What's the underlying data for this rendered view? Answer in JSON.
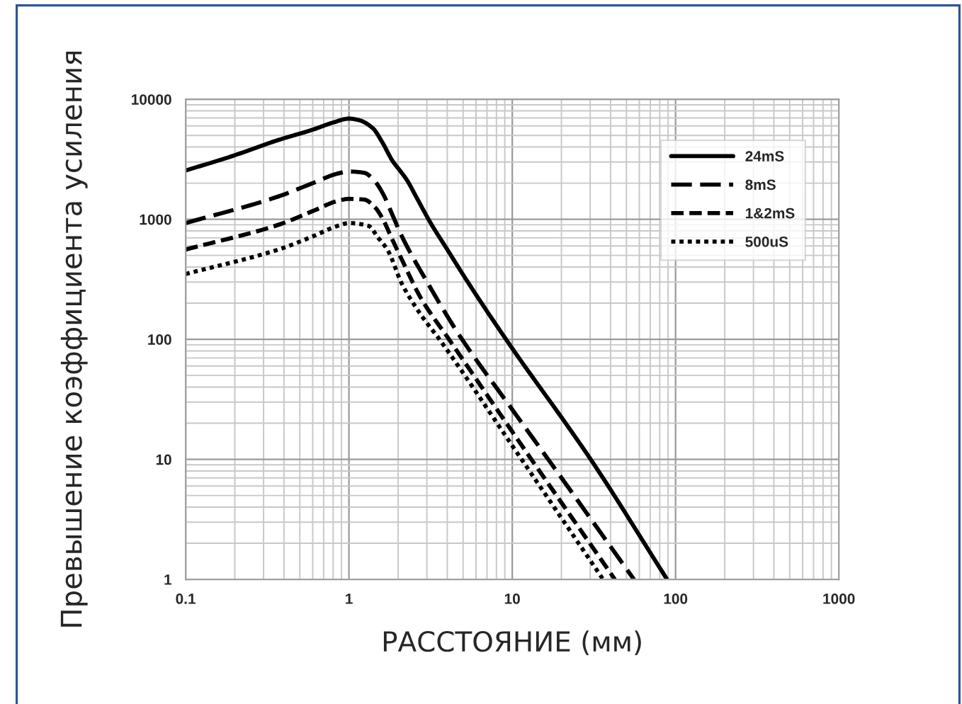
{
  "chart_data": {
    "type": "line",
    "xlabel": "РАССТОЯНИЕ (мм)",
    "ylabel": "Превышение коэффициента усиления",
    "log": "xy",
    "xlim": [
      0.1,
      1000
    ],
    "ylim": [
      1,
      10000
    ],
    "xticks": [
      0.1,
      1,
      10,
      100,
      1000
    ],
    "yticks": [
      1,
      10,
      100,
      1000,
      10000
    ],
    "grid": true,
    "legend": "top right",
    "marker": "none",
    "series": [
      {
        "name": "24mS",
        "color": "#000000",
        "line_style": "solid",
        "x": [
          0.1,
          0.19,
          0.37,
          0.6,
          0.8,
          1.0,
          1.15,
          1.4,
          1.6,
          1.85,
          2.05,
          2.26,
          2.6,
          3.15,
          4,
          5.3,
          10,
          21.8,
          31,
          88.7
        ],
        "values": [
          2550,
          3340,
          4580,
          5580,
          6400,
          6900,
          6700,
          5740,
          4380,
          3060,
          2550,
          2130,
          1510,
          940,
          560,
          305,
          84,
          19,
          9.5,
          1
        ]
      },
      {
        "name": "8mS",
        "color": "#000000",
        "line_style": "dashed",
        "x": [
          0.1,
          0.37,
          0.6,
          0.85,
          1.0,
          1.24,
          1.45,
          1.62,
          1.85,
          2.11,
          3.15,
          3.85,
          4.7,
          10,
          16.6,
          55.6
        ],
        "values": [
          930,
          1550,
          2000,
          2400,
          2500,
          2440,
          2050,
          1620,
          1080,
          720,
          270,
          170,
          110,
          26,
          10,
          1
        ]
      },
      {
        "name": "1&2mS",
        "color": "#000000",
        "line_style": "dashed",
        "x": [
          0.1,
          0.37,
          0.6,
          0.85,
          1.0,
          1.24,
          1.45,
          1.62,
          1.85,
          2.11,
          2.76,
          4.12,
          10,
          42.5
        ],
        "values": [
          560,
          900,
          1170,
          1420,
          1480,
          1460,
          1250,
          990,
          670,
          460,
          220,
          99,
          17,
          1
        ]
      },
      {
        "name": "500uS",
        "color": "#000000",
        "line_style": "dotted",
        "x": [
          0.1,
          0.37,
          0.6,
          0.85,
          1.0,
          1.32,
          1.5,
          1.73,
          2.11,
          2.76,
          3.6,
          10,
          36
        ],
        "values": [
          350,
          560,
          720,
          880,
          930,
          880,
          710,
          550,
          290,
          160,
          99,
          13,
          1
        ]
      }
    ]
  }
}
